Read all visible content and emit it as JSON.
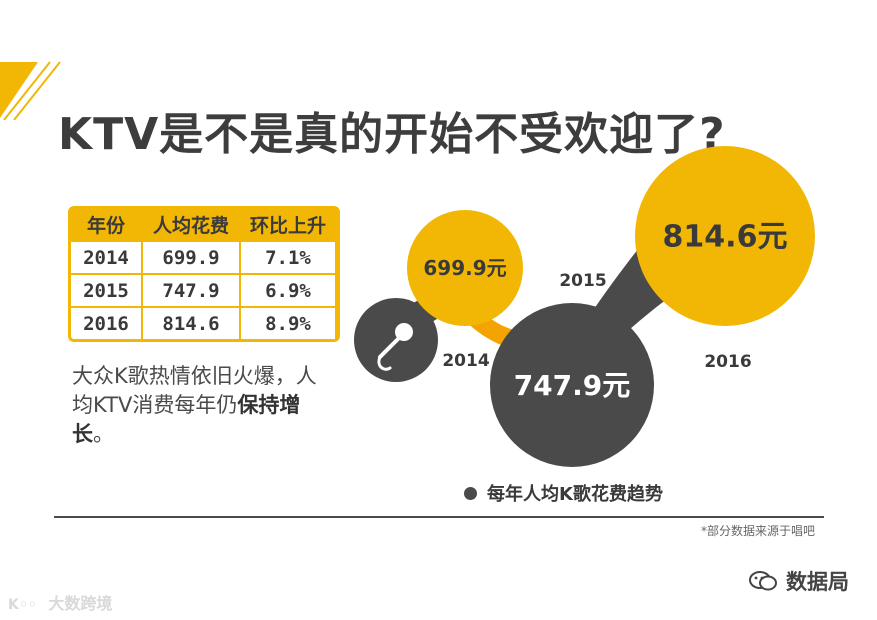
{
  "title": "KTV是不是真的开始不受欢迎了?",
  "table": {
    "headers": [
      "年份",
      "人均花费",
      "环比上升"
    ],
    "rows": [
      [
        "2014",
        "699.9",
        "7.1%"
      ],
      [
        "2015",
        "747.9",
        "6.9%"
      ],
      [
        "2016",
        "814.6",
        "8.9%"
      ]
    ]
  },
  "description": {
    "line1": "大众K歌热情依旧火爆，人",
    "line2_prefix": "均KTV消费每年仍",
    "line2_bold": "保持增",
    "line3_bold": "长",
    "line3_suffix": "。"
  },
  "chart_data": {
    "type": "bubble",
    "x": [
      "2014",
      "2015",
      "2016"
    ],
    "values": [
      699.9,
      747.9,
      814.6
    ],
    "value_labels": [
      "699.9元",
      "747.9元",
      "814.6元"
    ],
    "legend": "每年人均K歌花费趋势",
    "colors": {
      "yellow": "#f2b705",
      "dark": "#4a4a4a",
      "connector": "#f5a300"
    }
  },
  "footnote": "*部分数据来源于唱吧",
  "watermark_right": "数据局",
  "watermark_left": "大数跨境",
  "colors": {
    "accent": "#f2b705",
    "dark": "#4a4a4a",
    "text": "#3a3a3a"
  }
}
